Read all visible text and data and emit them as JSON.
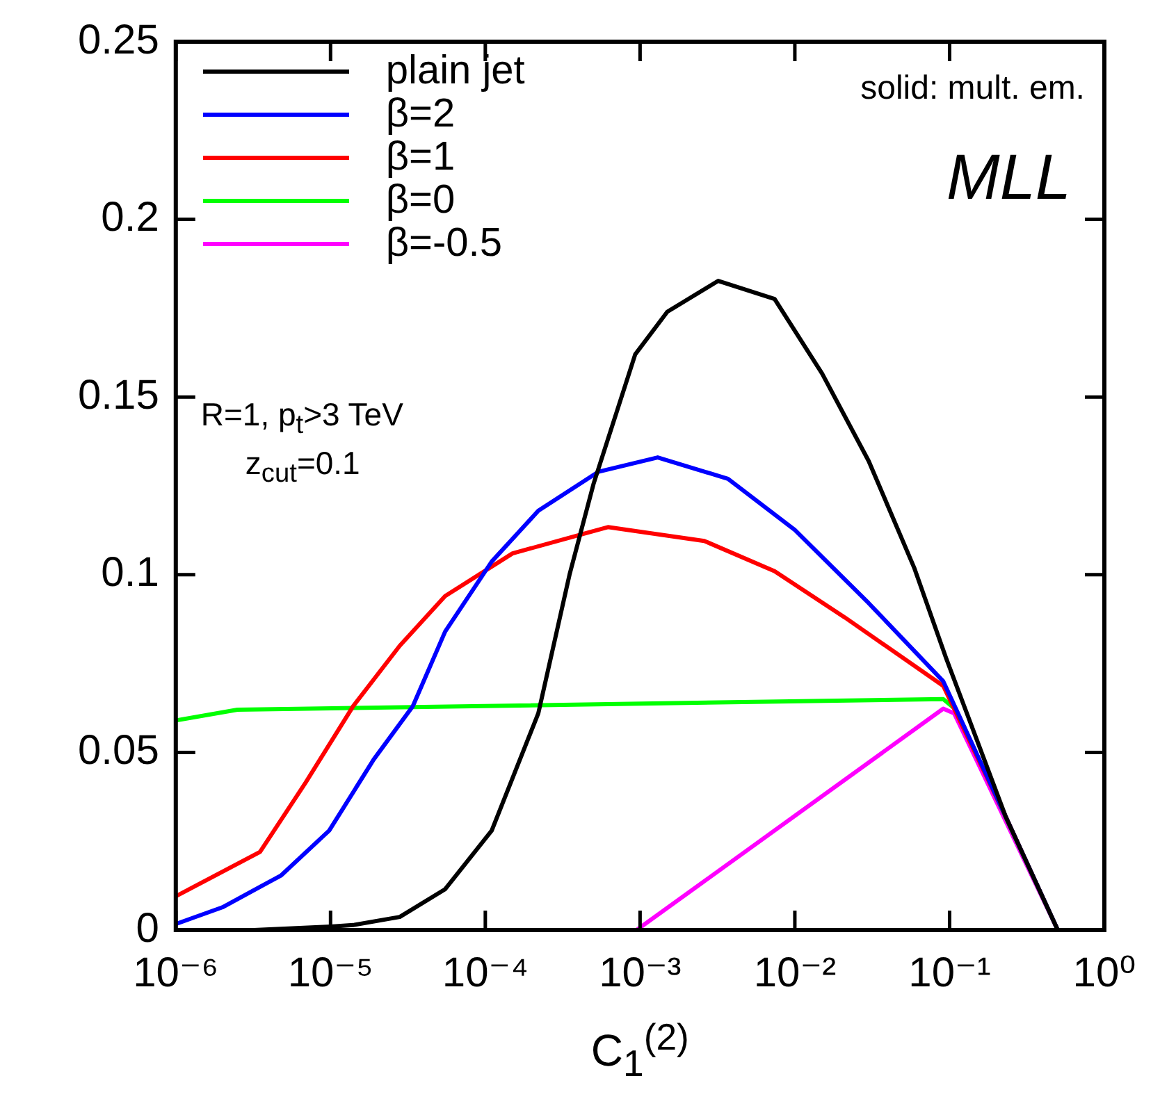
{
  "chart_data": {
    "type": "line",
    "xlabel": "C$_{1}$$^{(2)}$",
    "log": "x",
    "xlim": [
      1e-06,
      1
    ],
    "ylim": [
      0,
      0.25
    ],
    "xticks": [
      {
        "value": 1e-06,
        "label": "10⁻⁶"
      },
      {
        "value": 1e-05,
        "label": "10⁻⁵"
      },
      {
        "value": 0.0001,
        "label": "10⁻⁴"
      },
      {
        "value": 0.001,
        "label": "10⁻³"
      },
      {
        "value": 0.01,
        "label": "10⁻²"
      },
      {
        "value": 0.1,
        "label": "10⁻¹"
      },
      {
        "value": 1,
        "label": "10⁰"
      }
    ],
    "yticks": [
      0,
      0.05,
      0.1,
      0.15,
      0.2,
      0.25
    ],
    "grid": false,
    "legend": "top left",
    "line_style": "solid",
    "marker": "none",
    "annotations": [
      "solid: mult. em.",
      "MLL",
      "R=1, p$_{t}$>3 TeV",
      "z$_{cut}$=0.1"
    ],
    "series": [
      {
        "name": "plain jet",
        "color": "#000000",
        "x": [
          3.2e-06,
          1e-05,
          1.4e-05,
          2.8e-05,
          5.5e-05,
          0.00011,
          0.00022,
          0.00035,
          0.0005,
          0.00093,
          0.0015,
          0.0032,
          0.0074,
          0.015,
          0.03,
          0.059,
          0.095,
          0.23,
          0.5
        ],
        "values": [
          0,
          0.001,
          0.0014,
          0.0037,
          0.0115,
          0.028,
          0.061,
          0.1,
          0.1255,
          0.162,
          0.174,
          0.1827,
          0.1776,
          0.1566,
          0.132,
          0.102,
          0.0765,
          0.032,
          0
        ]
      },
      {
        "name": "β=2",
        "color": "#0000ff",
        "x": [
          1e-06,
          2e-06,
          4.8e-06,
          9.8e-06,
          1.9e-05,
          3.4e-05,
          5.5e-05,
          0.00011,
          0.00022,
          0.00054,
          0.0013,
          0.0037,
          0.01,
          0.03,
          0.091,
          0.23,
          0.5
        ],
        "values": [
          0.0017,
          0.0064,
          0.0154,
          0.028,
          0.048,
          0.063,
          0.084,
          0.1037,
          0.118,
          0.129,
          0.133,
          0.127,
          0.1126,
          0.092,
          0.07,
          0.032,
          0
        ]
      },
      {
        "name": "β=1",
        "color": "#ff0000",
        "x": [
          1e-06,
          3.5e-06,
          6.9e-06,
          1.4e-05,
          2.8e-05,
          5.5e-05,
          0.00015,
          0.00062,
          0.0026,
          0.0074,
          0.021,
          0.091,
          0.23,
          0.5
        ],
        "values": [
          0.0095,
          0.022,
          0.0415,
          0.063,
          0.08,
          0.094,
          0.106,
          0.1134,
          0.1095,
          0.101,
          0.088,
          0.0687,
          0.032,
          0
        ]
      },
      {
        "name": "β=0",
        "color": "#00ff00",
        "x": [
          1e-06,
          2.5e-06,
          0.091,
          0.11,
          0.5
        ],
        "values": [
          0.059,
          0.062,
          0.065,
          0.062,
          0
        ]
      },
      {
        "name": "β=-0.5",
        "color": "#ff00ff",
        "x": [
          0.00095,
          0.091,
          0.107,
          0.5
        ],
        "values": [
          0,
          0.0623,
          0.061,
          0
        ]
      }
    ]
  }
}
